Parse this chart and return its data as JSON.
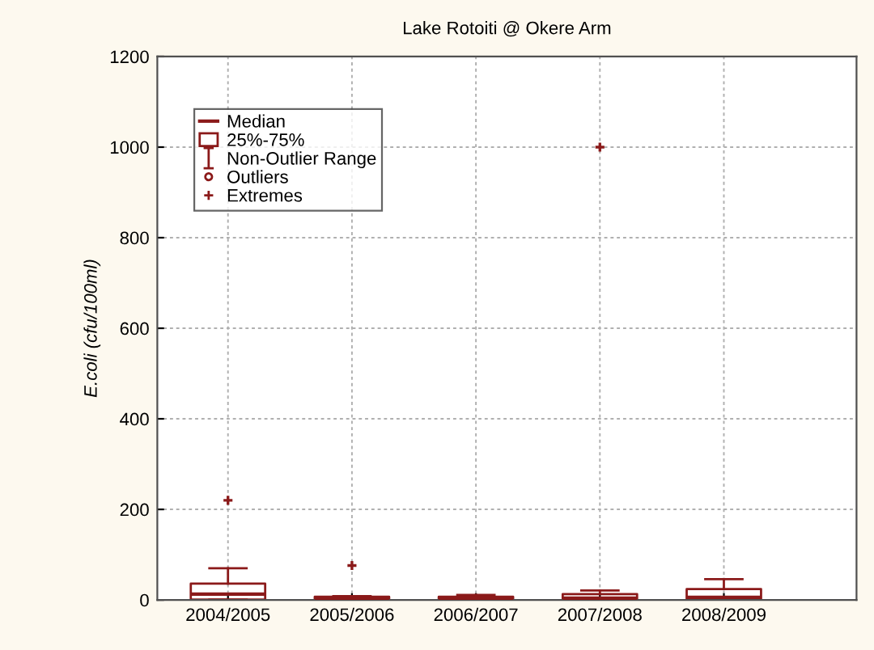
{
  "chart_data": {
    "type": "box",
    "title": "Lake Rotoiti @ Okere Arm",
    "ylabel": "E.coli (cfu/100ml)",
    "categories": [
      "2004/2005",
      "2005/2006",
      "2006/2007",
      "2007/2008",
      "2008/2009"
    ],
    "ylim": [
      0,
      1200
    ],
    "yticks": [
      0,
      200,
      400,
      600,
      800,
      1000,
      1200
    ],
    "grid": true,
    "legend": "top left",
    "annotations": [
      "25%-75%",
      "Non-Outlier Range"
    ],
    "series": [
      {
        "type": "box",
        "name": "Median",
        "color": "#8b1a1a",
        "marker": "square",
        "boxes": [
          {
            "low": 1,
            "q1": 1,
            "median": 13,
            "q3": 36,
            "high": 70
          },
          {
            "low": 0,
            "q1": 0,
            "median": 2,
            "q3": 7,
            "high": 8.5
          },
          {
            "low": 0,
            "q1": 0,
            "median": 2,
            "q3": 7,
            "high": 11
          },
          {
            "low": 1,
            "q1": 1,
            "median": 4,
            "q3": 13,
            "high": 21
          },
          {
            "low": 0,
            "q1": 2,
            "median": 6,
            "q3": 24,
            "high": 46
          }
        ]
      },
      {
        "type": "scatter",
        "name": "Outliers",
        "color": "#8b1a1a",
        "marker": "circle",
        "x": [
          "2004/2005",
          "2005/2006",
          "2006/2007",
          "2007/2008",
          "2008/2009"
        ],
        "values": [
          null,
          null,
          null,
          null,
          null
        ]
      },
      {
        "type": "scatter",
        "name": "Extremes",
        "color": "#8b1a1a",
        "marker": "cross",
        "x": [
          "2004/2005",
          "2005/2006",
          "2006/2007",
          "2007/2008",
          "2008/2009"
        ],
        "values": [
          220,
          76,
          null,
          1000,
          null
        ]
      }
    ]
  }
}
